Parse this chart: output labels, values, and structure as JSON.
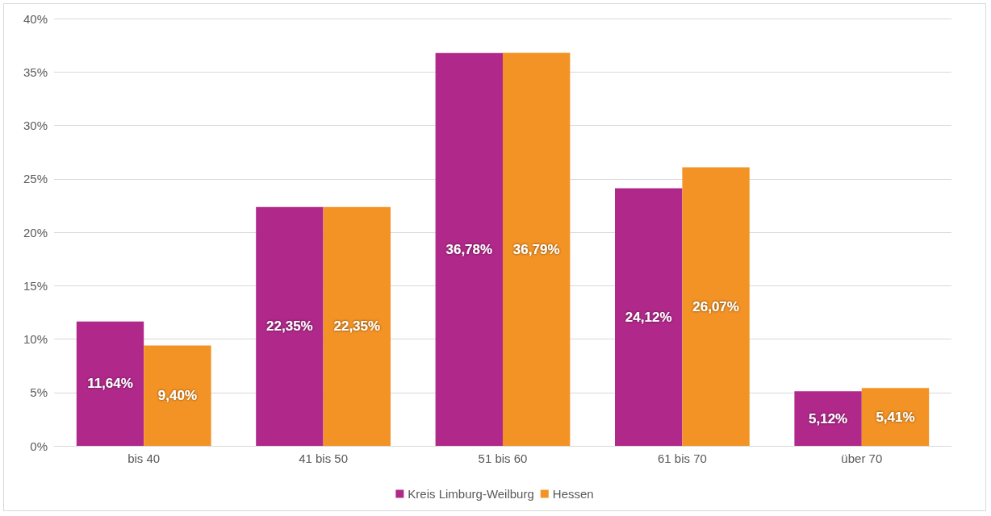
{
  "chart_data": {
    "type": "bar",
    "categories": [
      "bis 40",
      "41 bis 50",
      "51 bis 60",
      "61 bis 70",
      "über 70"
    ],
    "series": [
      {
        "name": "Kreis Limburg-Weilburg",
        "color": "#b0288a",
        "values": [
          11.64,
          22.35,
          36.78,
          24.12,
          5.12
        ],
        "value_labels": [
          "11,64%",
          "22,35%",
          "36,78%",
          "24,12%",
          "5,12%"
        ]
      },
      {
        "name": "Hessen",
        "color": "#f39325",
        "values": [
          9.4,
          22.35,
          36.79,
          26.07,
          5.41
        ],
        "value_labels": [
          "9,40%",
          "22,35%",
          "36,79%",
          "26,07%",
          "5,41%"
        ]
      }
    ],
    "ylim": [
      0,
      40
    ],
    "yticks": [
      {
        "value": 0,
        "label": "0%"
      },
      {
        "value": 5,
        "label": "5%"
      },
      {
        "value": 10,
        "label": "10%"
      },
      {
        "value": 15,
        "label": "15%"
      },
      {
        "value": 20,
        "label": "20%"
      },
      {
        "value": 25,
        "label": "25%"
      },
      {
        "value": 30,
        "label": "30%"
      },
      {
        "value": 35,
        "label": "35%"
      },
      {
        "value": 40,
        "label": "40%"
      }
    ],
    "grid": "y",
    "legend": "bottom"
  }
}
